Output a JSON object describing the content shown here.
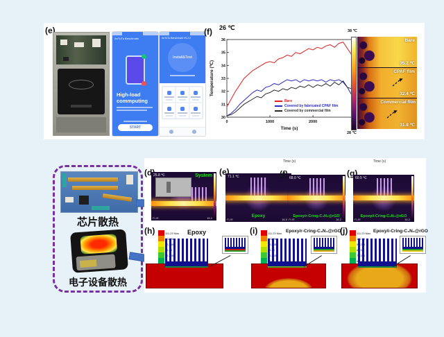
{
  "top": {
    "panel_e_label": "(e)",
    "screen1": {
      "app_bar": "AnTuTu Benchmark",
      "headline": "High-load commputing",
      "button": "START"
    },
    "screen2": {
      "app_bar": "AnTuTu Benchmark V9.2.2",
      "circle": "Install&Test"
    },
    "panel_f_label": "(f)",
    "ambient": "26 ℃",
    "colorbar": {
      "top": "38 ℃",
      "bottom": "28 ℃"
    },
    "thermal": [
      {
        "name": "Bare",
        "temp": "35.2 ℃"
      },
      {
        "name": "CPAF film",
        "temp": "32.4 ℃"
      },
      {
        "name": "Commercial film",
        "temp": "31.8 ℃"
      }
    ]
  },
  "chart_data": {
    "type": "line",
    "title": "26 ℃",
    "xlabel": "Time (s)",
    "ylabel": "Temperature (℃)",
    "xlim": [
      0,
      2900
    ],
    "ylim": [
      30,
      36
    ],
    "xticks": [
      0,
      1000,
      2000
    ],
    "yticks": [
      30,
      31,
      32,
      33,
      34,
      35,
      36
    ],
    "legend_position": "lower right",
    "grid": false,
    "x": [
      0,
      100,
      200,
      300,
      400,
      500,
      600,
      700,
      800,
      900,
      1000,
      1100,
      1200,
      1300,
      1400,
      1500,
      1600,
      1700,
      1800,
      1900,
      2000,
      2100,
      2200,
      2300,
      2400,
      2500,
      2600,
      2700,
      2800,
      2900
    ],
    "series": [
      {
        "name": "Bare",
        "color": "#e02020",
        "y": [
          30.8,
          31.4,
          32.0,
          32.5,
          33.0,
          33.3,
          33.6,
          33.8,
          34.0,
          34.2,
          34.3,
          34.2,
          34.5,
          34.6,
          34.8,
          34.7,
          35.0,
          34.9,
          35.1,
          35.3,
          35.2,
          35.4,
          35.3,
          35.5,
          35.6,
          35.4,
          35.7,
          35.8,
          35.3,
          34.8
        ]
      },
      {
        "name": "Covered by fabricated CPAF film",
        "color": "#2828c8",
        "y": [
          30.1,
          30.3,
          30.6,
          31.0,
          31.3,
          31.6,
          31.9,
          32.1,
          32.0,
          32.3,
          32.4,
          32.6,
          32.5,
          32.7,
          32.9,
          32.8,
          32.9,
          32.7,
          32.9,
          32.8,
          32.9,
          32.8,
          32.9,
          32.7,
          32.9,
          32.8,
          32.9,
          32.7,
          32.3,
          31.7
        ]
      },
      {
        "name": "Covered by commercial film",
        "color": "#282828",
        "y": [
          30.1,
          30.2,
          30.4,
          30.7,
          31.0,
          31.2,
          31.4,
          31.6,
          31.5,
          31.8,
          31.9,
          32.1,
          32.0,
          32.2,
          32.1,
          32.3,
          32.2,
          32.4,
          32.3,
          32.5,
          32.3,
          32.5,
          32.4,
          32.6,
          32.4,
          32.7,
          32.5,
          32.8,
          32.3,
          32.2
        ]
      }
    ]
  },
  "bottom": {
    "box": {
      "label1": "芯片散热",
      "label2": "电子设备散热"
    },
    "time_axis": "Time (s)",
    "row1": [
      {
        "label": "(d)",
        "temp": "25.8 ℃",
        "tag": "System",
        "min": "15.1",
        "brand": "FLIR"
      },
      {
        "label": "(e)",
        "temp": "71.1 ℃",
        "tag": "Epoxy",
        "min": "16.0",
        "brand": "FLIR"
      },
      {
        "label": "(f)",
        "temp": "68.0 ℃",
        "tag": "Epoxy/r-Cring-C₃N₄@rGO",
        "min": "16.2",
        "brand": "FLIR"
      },
      {
        "label": "(g)",
        "temp": "60.5 ℃",
        "tag": "Epoxy/i-Cring-C₃N₄@rGO",
        "min": "16.2",
        "brand": "FLIR"
      }
    ],
    "row2": [
      {
        "label": "(h)",
        "title": "Epoxy"
      },
      {
        "label": "(i)",
        "title": "Epoxy/r-Cring-C₃N₄@rGO"
      },
      {
        "label": "(j)",
        "title": "Epoxy/i-Cring-C₃N₄@rGO"
      }
    ],
    "sim_scale": [
      {
        "v": "111.23 Max",
        "c": "#e00000"
      },
      {
        "v": "102.26",
        "c": "#f08000"
      },
      {
        "v": "93.295",
        "c": "#f0e800"
      },
      {
        "v": "84.33",
        "c": "#b0e000"
      },
      {
        "v": "75.365",
        "c": "#40c830"
      },
      {
        "v": "66.4",
        "c": "#00b050"
      },
      {
        "v": "57.435",
        "c": "#00c8a8"
      },
      {
        "v": "48.47",
        "c": "#00a8e0"
      },
      {
        "v": "39.505",
        "c": "#0060e0"
      },
      {
        "v": "30.54 Min",
        "c": "#0018c0"
      }
    ]
  }
}
